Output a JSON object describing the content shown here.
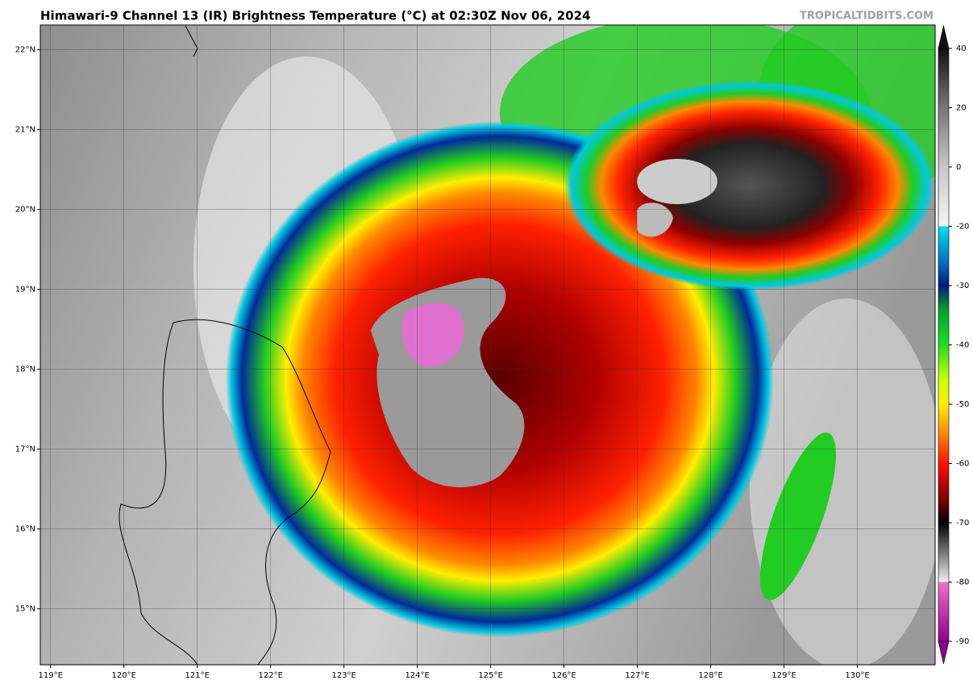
{
  "header": {
    "title": "Himawari-9 Channel 13 (IR) Brightness Temperature (°C) at 02:30Z Nov 06, 2024",
    "credit": "TROPICALTIDBITS.COM"
  },
  "map": {
    "lon_range": [
      118.86,
      131.06
    ],
    "lat_range": [
      14.3,
      22.31
    ],
    "lon_ticks": [
      {
        "value": 119,
        "label": "119°E"
      },
      {
        "value": 120,
        "label": "120°E"
      },
      {
        "value": 121,
        "label": "121°E"
      },
      {
        "value": 122,
        "label": "122°E"
      },
      {
        "value": 123,
        "label": "123°E"
      },
      {
        "value": 124,
        "label": "124°E"
      },
      {
        "value": 125,
        "label": "125°E"
      },
      {
        "value": 126,
        "label": "126°E"
      },
      {
        "value": 127,
        "label": "127°E"
      },
      {
        "value": 128,
        "label": "128°E"
      },
      {
        "value": 129,
        "label": "129°E"
      },
      {
        "value": 130,
        "label": "130°E"
      }
    ],
    "lat_ticks": [
      {
        "value": 15,
        "label": "15°N"
      },
      {
        "value": 16,
        "label": "16°N"
      },
      {
        "value": 17,
        "label": "17°N"
      },
      {
        "value": 18,
        "label": "18°N"
      },
      {
        "value": 19,
        "label": "19°N"
      },
      {
        "value": 20,
        "label": "20°N"
      },
      {
        "value": 21,
        "label": "21°N"
      },
      {
        "value": 22,
        "label": "22°N"
      }
    ]
  },
  "colorbar": {
    "ticks": [
      40,
      20,
      0,
      -20,
      -30,
      -40,
      -50,
      -60,
      -70,
      -80,
      -90
    ]
  }
}
